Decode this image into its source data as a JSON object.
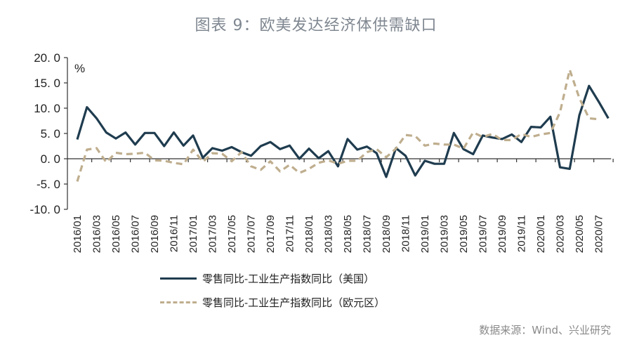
{
  "header": {
    "title": "图表 9：欧美发达经济体供需缺口"
  },
  "footer": {
    "source": "数据来源：Wind、兴业研究"
  },
  "legend": {
    "us": "零售同比-工业生产指数同比（美国）",
    "eu": "零售同比-工业生产指数同比（欧元区）"
  },
  "colors": {
    "us": "#1f3c4f",
    "eu": "#bfae8e",
    "axis": "#333333"
  },
  "chart_data": {
    "type": "line",
    "title": "图表 9：欧美发达经济体供需缺口",
    "xlabel": "",
    "ylabel": "%",
    "ylim": [
      -10,
      20
    ],
    "yticks": [
      "20.0",
      "15.0",
      "10.0",
      "5.0",
      "0.0",
      "-5.0",
      "-10.0"
    ],
    "grid": false,
    "legend_position": "bottom",
    "xtick_labels": [
      "2016/01",
      "2016/03",
      "2016/05",
      "2016/07",
      "2016/09",
      "2016/11",
      "2017/01",
      "2017/03",
      "2017/05",
      "2017/07",
      "2017/09",
      "2017/11",
      "2018/01",
      "2018/03",
      "2018/05",
      "2018/07",
      "2018/09",
      "2018/11",
      "2019/01",
      "2019/03",
      "2019/05",
      "2019/07",
      "2019/09",
      "2019/11",
      "2020/01",
      "2020/03",
      "2020/05",
      "2020/07"
    ],
    "x_start": "2016/01",
    "x_step": "month",
    "series": [
      {
        "name": "零售同比-工业生产指数同比（美国）",
        "style": "solid",
        "values": [
          3.8,
          10.2,
          8.0,
          5.2,
          4.0,
          5.2,
          2.8,
          5.1,
          5.1,
          2.5,
          5.2,
          2.6,
          4.6,
          0.2,
          2.1,
          1.6,
          2.3,
          1.3,
          0.6,
          2.5,
          3.3,
          1.9,
          2.6,
          0.0,
          2.0,
          0.1,
          1.5,
          -1.5,
          3.9,
          1.8,
          2.4,
          1.1,
          -3.6,
          2.1,
          0.6,
          -3.3,
          -0.4,
          -1.0,
          -1.0,
          5.1,
          1.9,
          0.9,
          4.6,
          4.2,
          3.9,
          4.8,
          3.3,
          6.3,
          6.2,
          8.3,
          -1.7,
          -2.0,
          8.6,
          14.4,
          11.3,
          8.0
        ]
      },
      {
        "name": "零售同比-工业生产指数同比（欧元区）",
        "style": "dashed",
        "values": [
          -4.5,
          1.8,
          2.1,
          -0.7,
          1.2,
          0.9,
          1.0,
          1.2,
          -0.3,
          -0.4,
          -0.8,
          -1.1,
          1.8,
          -0.6,
          1.1,
          1.0,
          -0.5,
          1.3,
          -1.5,
          -2.2,
          -0.5,
          -2.5,
          -1.2,
          -2.8,
          -2.0,
          -0.8,
          -0.3,
          -1.0,
          -0.4,
          -0.4,
          1.3,
          1.9,
          0.3,
          2.0,
          4.7,
          4.5,
          2.6,
          3.0,
          2.8,
          2.8,
          2.0,
          5.2,
          4.3,
          4.9,
          3.7,
          3.7,
          4.9,
          4.3,
          4.8,
          5.1,
          9.2,
          17.6,
          12.0,
          8.0,
          7.8
        ]
      }
    ]
  }
}
